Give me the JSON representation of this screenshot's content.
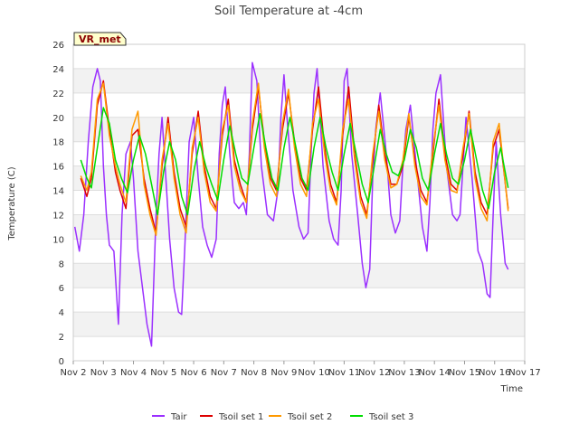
{
  "chart_data": {
    "type": "line",
    "title": "Soil Temperature at -4cm",
    "xlabel": "Time",
    "ylabel": "Temperature (C)",
    "badge": "VR_met",
    "ylim": [
      0,
      26
    ],
    "yticks": [
      0,
      2,
      4,
      6,
      8,
      10,
      12,
      14,
      16,
      18,
      20,
      22,
      24,
      26
    ],
    "xlim": [
      2,
      17
    ],
    "xticks": [
      {
        "value": 2,
        "label": "Nov 2"
      },
      {
        "value": 3,
        "label": "Nov 3"
      },
      {
        "value": 4,
        "label": "Nov 4"
      },
      {
        "value": 5,
        "label": "Nov 5"
      },
      {
        "value": 6,
        "label": "Nov 6"
      },
      {
        "value": 7,
        "label": "Nov 7"
      },
      {
        "value": 8,
        "label": "Nov 8"
      },
      {
        "value": 9,
        "label": "Nov 9"
      },
      {
        "value": 10,
        "label": "Nov 10"
      },
      {
        "value": 11,
        "label": "Nov 11"
      },
      {
        "value": 12,
        "label": "Nov 12"
      },
      {
        "value": 13,
        "label": "Nov 13"
      },
      {
        "value": 14,
        "label": "Nov 14"
      },
      {
        "value": 15,
        "label": "Nov 15"
      },
      {
        "value": 16,
        "label": "Nov 16"
      },
      {
        "value": 17,
        "label": "Nov 17"
      }
    ],
    "grid": true,
    "banded_background": true,
    "legend_position": "bottom",
    "series": [
      {
        "name": "Tair",
        "color": "#9b30ff",
        "x": [
          2.05,
          2.2,
          2.35,
          2.5,
          2.65,
          2.8,
          2.9,
          3.0,
          3.1,
          3.2,
          3.35,
          3.5,
          3.62,
          3.75,
          3.9,
          4.0,
          4.15,
          4.3,
          4.45,
          4.6,
          4.75,
          4.85,
          4.95,
          5.05,
          5.2,
          5.35,
          5.5,
          5.6,
          5.7,
          5.85,
          6.0,
          6.15,
          6.3,
          6.45,
          6.6,
          6.75,
          6.85,
          6.95,
          7.05,
          7.2,
          7.35,
          7.5,
          7.65,
          7.75,
          7.85,
          7.95,
          8.1,
          8.25,
          8.45,
          8.65,
          8.8,
          8.9,
          9.0,
          9.1,
          9.3,
          9.5,
          9.65,
          9.8,
          9.9,
          10.0,
          10.1,
          10.3,
          10.5,
          10.65,
          10.8,
          10.9,
          11.0,
          11.1,
          11.25,
          11.45,
          11.6,
          11.72,
          11.85,
          11.95,
          12.05,
          12.2,
          12.4,
          12.55,
          12.7,
          12.85,
          12.95,
          13.05,
          13.2,
          13.4,
          13.6,
          13.75,
          13.85,
          13.95,
          14.05,
          14.2,
          14.4,
          14.6,
          14.75,
          14.85,
          14.95,
          15.05,
          15.25,
          15.45,
          15.6,
          15.75,
          15.85,
          15.95,
          16.05,
          16.2,
          16.35,
          16.45
        ],
        "y": [
          11.0,
          9.0,
          12.0,
          18.0,
          22.5,
          24.0,
          23.0,
          16.0,
          12.0,
          9.5,
          9.0,
          3.0,
          12.0,
          17.0,
          18.0,
          15.0,
          9.0,
          6.0,
          3.0,
          1.2,
          12.0,
          17.0,
          20.0,
          16.0,
          10.0,
          6.0,
          4.0,
          3.8,
          9.0,
          18.0,
          20.0,
          15.0,
          11.0,
          9.5,
          8.5,
          10.0,
          17.0,
          21.0,
          22.5,
          17.0,
          13.0,
          12.5,
          13.0,
          12.0,
          17.0,
          24.5,
          23.0,
          16.0,
          12.0,
          11.5,
          14.0,
          20.0,
          23.5,
          20.0,
          14.0,
          11.0,
          10.0,
          10.5,
          17.0,
          22.0,
          24.0,
          16.0,
          11.5,
          10.0,
          9.5,
          14.0,
          23.0,
          24.0,
          17.0,
          12.0,
          8.0,
          6.0,
          7.5,
          15.0,
          19.0,
          22.0,
          17.0,
          12.0,
          10.5,
          11.5,
          16.0,
          19.0,
          21.0,
          16.0,
          11.0,
          9.0,
          13.0,
          19.0,
          22.0,
          23.5,
          16.0,
          12.0,
          11.5,
          12.0,
          16.0,
          20.0,
          15.0,
          9.0,
          8.0,
          5.5,
          5.2,
          12.0,
          18.0,
          12.0,
          8.0,
          7.5
        ]
      },
      {
        "name": "Tsoil set 1",
        "color": "#dd0000",
        "x": [
          2.25,
          2.45,
          2.6,
          2.8,
          3.0,
          3.2,
          3.4,
          3.55,
          3.75,
          3.95,
          4.15,
          4.35,
          4.55,
          4.75,
          4.95,
          5.15,
          5.35,
          5.55,
          5.75,
          5.95,
          6.15,
          6.35,
          6.55,
          6.75,
          6.95,
          7.15,
          7.35,
          7.55,
          7.75,
          7.95,
          8.15,
          8.35,
          8.55,
          8.75,
          8.95,
          9.15,
          9.35,
          9.55,
          9.75,
          9.95,
          10.15,
          10.35,
          10.55,
          10.75,
          10.95,
          11.15,
          11.35,
          11.55,
          11.75,
          11.95,
          12.15,
          12.35,
          12.55,
          12.75,
          12.95,
          13.15,
          13.35,
          13.55,
          13.75,
          13.95,
          14.15,
          14.35,
          14.55,
          14.75,
          14.95,
          15.15,
          15.35,
          15.55,
          15.75,
          15.95,
          16.15,
          16.45
        ],
        "y": [
          15.0,
          13.5,
          15.0,
          21.0,
          23.0,
          19.0,
          15.5,
          14.0,
          12.5,
          18.5,
          19.0,
          15.0,
          12.5,
          10.5,
          16.0,
          20.0,
          15.5,
          12.5,
          11.0,
          17.0,
          20.5,
          16.0,
          13.5,
          12.5,
          18.5,
          21.5,
          16.5,
          14.5,
          13.0,
          19.0,
          22.5,
          18.0,
          15.0,
          14.0,
          19.0,
          22.0,
          18.0,
          15.0,
          14.0,
          19.0,
          22.5,
          17.5,
          14.5,
          13.0,
          18.5,
          22.5,
          17.0,
          13.5,
          12.0,
          16.5,
          21.0,
          17.0,
          14.5,
          14.5,
          16.0,
          20.0,
          16.5,
          14.0,
          13.0,
          17.0,
          21.5,
          17.0,
          14.5,
          14.0,
          17.0,
          20.5,
          15.5,
          13.0,
          12.0,
          17.5,
          19.0,
          12.5
        ]
      },
      {
        "name": "Tsoil set 2",
        "color": "#ff9900",
        "x": [
          2.25,
          2.45,
          2.6,
          2.8,
          3.0,
          3.2,
          3.4,
          3.55,
          3.75,
          3.95,
          4.15,
          4.35,
          4.55,
          4.75,
          4.95,
          5.15,
          5.35,
          5.55,
          5.75,
          5.95,
          6.15,
          6.35,
          6.55,
          6.75,
          6.95,
          7.15,
          7.35,
          7.55,
          7.75,
          7.95,
          8.15,
          8.35,
          8.55,
          8.75,
          8.95,
          9.15,
          9.35,
          9.55,
          9.75,
          9.95,
          10.15,
          10.35,
          10.55,
          10.75,
          10.95,
          11.15,
          11.35,
          11.55,
          11.75,
          11.95,
          12.15,
          12.35,
          12.55,
          12.75,
          12.95,
          13.15,
          13.35,
          13.55,
          13.75,
          13.95,
          14.15,
          14.35,
          14.55,
          14.75,
          14.95,
          15.15,
          15.35,
          15.55,
          15.75,
          15.95,
          16.15,
          16.45
        ],
        "y": [
          15.2,
          14.0,
          15.5,
          21.5,
          22.8,
          18.5,
          16.0,
          14.5,
          13.0,
          19.0,
          20.5,
          14.5,
          12.0,
          10.3,
          16.5,
          19.5,
          15.0,
          12.0,
          10.5,
          17.5,
          20.0,
          15.5,
          13.0,
          12.3,
          19.0,
          21.0,
          16.0,
          14.0,
          13.0,
          19.5,
          22.8,
          17.5,
          14.5,
          13.5,
          19.5,
          22.3,
          17.5,
          14.5,
          13.5,
          19.5,
          21.5,
          17.0,
          14.0,
          12.8,
          19.0,
          21.5,
          16.5,
          13.0,
          11.7,
          17.0,
          20.5,
          16.5,
          14.2,
          14.5,
          16.5,
          20.3,
          16.0,
          13.5,
          12.8,
          17.5,
          21.0,
          16.5,
          14.0,
          13.8,
          17.5,
          20.3,
          15.0,
          12.5,
          11.5,
          18.0,
          19.5,
          12.3
        ]
      },
      {
        "name": "Tsoil set 3",
        "color": "#00dd00",
        "x": [
          2.25,
          2.45,
          2.6,
          2.8,
          3.0,
          3.2,
          3.4,
          3.6,
          3.8,
          4.0,
          4.2,
          4.4,
          4.6,
          4.8,
          5.0,
          5.2,
          5.4,
          5.6,
          5.8,
          6.0,
          6.2,
          6.4,
          6.6,
          6.8,
          7.0,
          7.2,
          7.4,
          7.6,
          7.8,
          8.0,
          8.2,
          8.4,
          8.6,
          8.8,
          9.0,
          9.2,
          9.4,
          9.6,
          9.8,
          10.0,
          10.2,
          10.4,
          10.6,
          10.8,
          11.0,
          11.2,
          11.4,
          11.6,
          11.8,
          12.0,
          12.2,
          12.4,
          12.6,
          12.8,
          13.0,
          13.2,
          13.4,
          13.6,
          13.8,
          14.0,
          14.2,
          14.4,
          14.6,
          14.8,
          15.0,
          15.2,
          15.4,
          15.6,
          15.8,
          16.0,
          16.2,
          16.45
        ],
        "y": [
          16.5,
          15.0,
          14.2,
          17.5,
          20.8,
          19.5,
          16.5,
          15.0,
          13.8,
          16.5,
          18.5,
          17.0,
          14.5,
          12.0,
          15.5,
          18.0,
          16.5,
          13.5,
          12.0,
          15.5,
          18.0,
          16.0,
          14.5,
          13.2,
          16.5,
          19.3,
          17.0,
          15.0,
          14.5,
          17.5,
          20.3,
          17.5,
          15.0,
          14.0,
          17.5,
          20.0,
          17.5,
          15.0,
          14.0,
          17.5,
          20.0,
          17.5,
          15.5,
          14.0,
          17.0,
          19.5,
          17.0,
          14.5,
          13.0,
          16.0,
          19.0,
          17.0,
          15.5,
          15.2,
          16.5,
          19.0,
          17.5,
          15.0,
          14.0,
          17.0,
          19.5,
          17.0,
          15.0,
          14.5,
          16.5,
          19.0,
          16.5,
          14.0,
          12.5,
          15.5,
          17.5,
          14.2
        ]
      }
    ]
  }
}
